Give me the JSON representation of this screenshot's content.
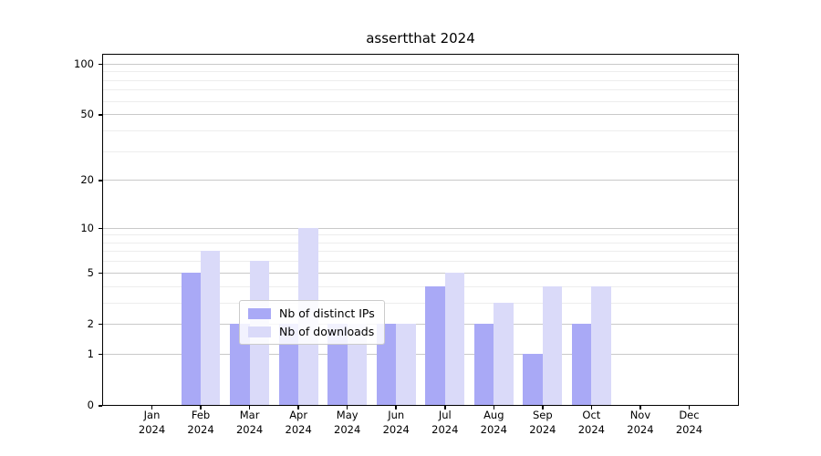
{
  "chart_data": {
    "type": "bar",
    "title": "assertthat 2024",
    "categories": [
      "Jan",
      "Feb",
      "Mar",
      "Apr",
      "May",
      "Jun",
      "Jul",
      "Aug",
      "Sep",
      "Oct",
      "Nov",
      "Dec"
    ],
    "category_year": "2024",
    "series": [
      {
        "name": "Nb of distinct IPs",
        "color": "#a9a9f6",
        "values": [
          0,
          5,
          2,
          2,
          2,
          2,
          4,
          2,
          1,
          2,
          0,
          0
        ]
      },
      {
        "name": "Nb of downloads",
        "color": "#dadaf9",
        "values": [
          0,
          7,
          6,
          10,
          2,
          2,
          5,
          3,
          4,
          4,
          0,
          0
        ]
      }
    ],
    "xlabel": "",
    "ylabel": "",
    "y_scale": "log1p",
    "y_ticks": [
      0,
      1,
      2,
      5,
      10,
      20,
      50,
      100
    ],
    "y_minor_gridlines": [
      3,
      4,
      6,
      7,
      8,
      9,
      30,
      40,
      60,
      70,
      80,
      90
    ],
    "ylim": [
      0,
      113
    ],
    "grid": "horizontal",
    "legend_position": "lower center",
    "colors": {
      "axis": "#000000",
      "major_grid": "#c9c9c9",
      "minor_grid": "#ededed",
      "background": "#ffffff"
    }
  }
}
